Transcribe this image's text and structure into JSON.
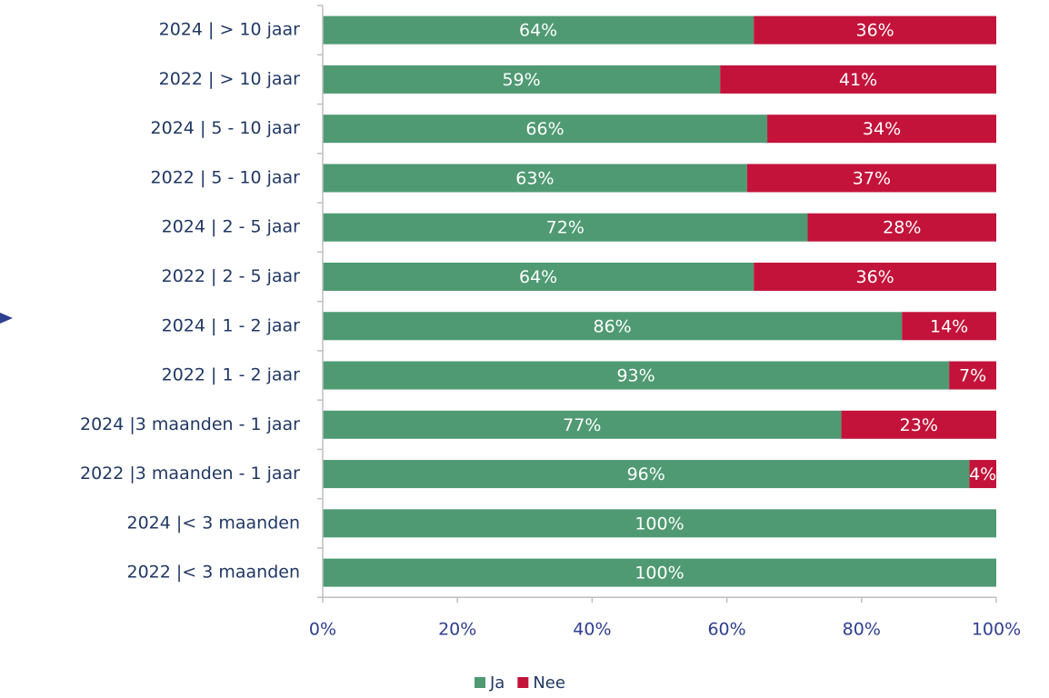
{
  "chart_data": {
    "type": "stacked_bar_horizontal",
    "categories": [
      "2024 | > 10 jaar",
      "2022 | > 10 jaar",
      "2024 | 5 - 10 jaar",
      "2022 | 5 - 10 jaar",
      "2024 | 2 - 5 jaar",
      "2022 | 2 - 5 jaar",
      "2024 | 1 - 2 jaar",
      "2022 | 1 - 2 jaar",
      "2024 |3 maanden - 1 jaar",
      "2022 |3 maanden - 1 jaar",
      "2024 |< 3 maanden",
      "2022 |< 3 maanden"
    ],
    "series": [
      {
        "name": "Ja",
        "color": "#4f9a73",
        "values": [
          64,
          59,
          66,
          63,
          72,
          64,
          86,
          93,
          77,
          96,
          100,
          100
        ],
        "value_labels": [
          "64%",
          "59%",
          "66%",
          "63%",
          "72%",
          "64%",
          "86%",
          "93%",
          "77%",
          "96%",
          "100%",
          "100%"
        ]
      },
      {
        "name": "Nee",
        "color": "#c3133a",
        "values": [
          36,
          41,
          34,
          37,
          28,
          36,
          14,
          7,
          23,
          4,
          0,
          0
        ],
        "value_labels": [
          "36%",
          "41%",
          "34%",
          "37%",
          "28%",
          "36%",
          "14%",
          "7%",
          "23%",
          "4%",
          null,
          null
        ]
      }
    ],
    "xlim": [
      0,
      100
    ],
    "xticks": [
      {
        "value": 0,
        "label": "0%"
      },
      {
        "value": 20,
        "label": "20%"
      },
      {
        "value": 40,
        "label": "40%"
      },
      {
        "value": 60,
        "label": "60%"
      },
      {
        "value": 80,
        "label": "80%"
      },
      {
        "value": 100,
        "label": "100%"
      }
    ],
    "legend": "bottom"
  }
}
